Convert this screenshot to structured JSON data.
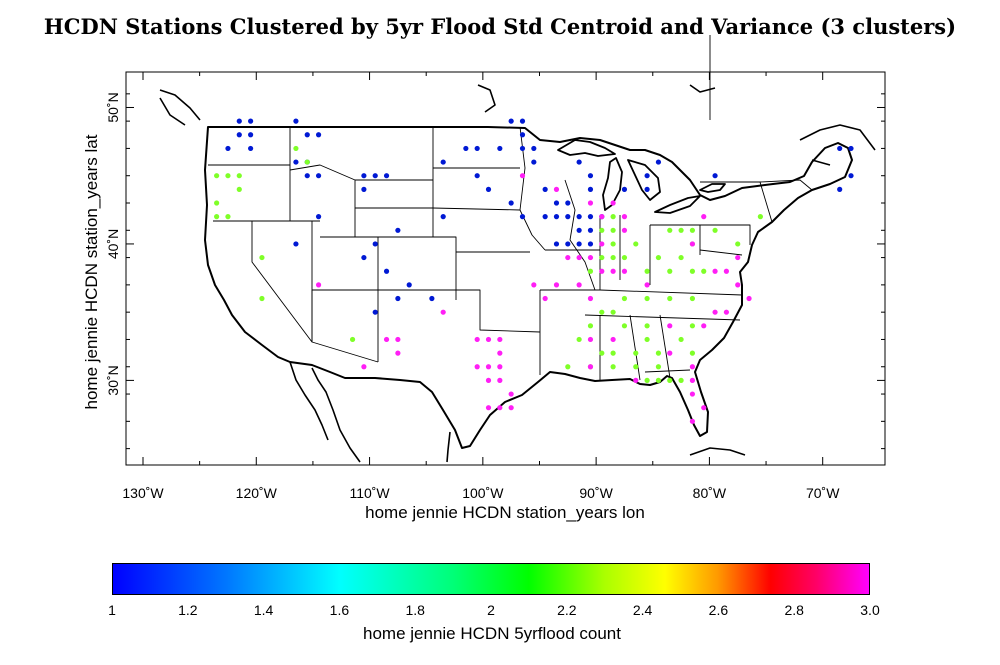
{
  "title": "HCDN Stations Clustered by 5yr Flood Std Centroid and Variance (3 clusters)",
  "x_axis": {
    "label": "home jennie HCDN station_years lon",
    "ticks": [
      {
        "value": -130,
        "label": "130˚W"
      },
      {
        "value": -120,
        "label": "120˚W"
      },
      {
        "value": -110,
        "label": "110˚W"
      },
      {
        "value": -100,
        "label": "100˚W"
      },
      {
        "value": -90,
        "label": "90˚W"
      },
      {
        "value": -80,
        "label": "80˚W"
      },
      {
        "value": -70,
        "label": "70˚W"
      }
    ],
    "range": [
      -131.5,
      -64.5
    ]
  },
  "y_axis": {
    "label": "home jennie HCDN station_years lat",
    "ticks": [
      {
        "value": 30,
        "label": "30˚N"
      },
      {
        "value": 40,
        "label": "40˚N"
      },
      {
        "value": 50,
        "label": "50˚N"
      }
    ],
    "range": [
      23.8,
      52.6
    ]
  },
  "colorbar": {
    "label": "home jennie HCDN 5yrflood count",
    "range": [
      1,
      3
    ],
    "ticks": [
      {
        "value": 1,
        "label": "1"
      },
      {
        "value": 1.2,
        "label": "1.2"
      },
      {
        "value": 1.4,
        "label": "1.4"
      },
      {
        "value": 1.6,
        "label": "1.6"
      },
      {
        "value": 1.8,
        "label": "1.8"
      },
      {
        "value": 2,
        "label": "2"
      },
      {
        "value": 2.2,
        "label": "2.2"
      },
      {
        "value": 2.4,
        "label": "2.4"
      },
      {
        "value": 2.6,
        "label": "2.6"
      },
      {
        "value": 2.8,
        "label": "2.8"
      },
      {
        "value": 3,
        "label": "3.0"
      }
    ]
  },
  "cluster_colors": {
    "1": "#0019d4",
    "2": "#7fff28",
    "3": "#ff1ff5"
  },
  "stations": [
    {
      "lon": -121.5,
      "lat": 49,
      "cluster": 1
    },
    {
      "lon": -120.5,
      "lat": 49,
      "cluster": 1
    },
    {
      "lon": -121.5,
      "lat": 48,
      "cluster": 1
    },
    {
      "lon": -120.5,
      "lat": 48,
      "cluster": 1
    },
    {
      "lon": -122.5,
      "lat": 47,
      "cluster": 1
    },
    {
      "lon": -120.5,
      "lat": 47,
      "cluster": 1
    },
    {
      "lon": -116.5,
      "lat": 49,
      "cluster": 1
    },
    {
      "lon": -115.5,
      "lat": 48,
      "cluster": 1
    },
    {
      "lon": -114.5,
      "lat": 48,
      "cluster": 1
    },
    {
      "lon": -116.5,
      "lat": 46,
      "cluster": 1
    },
    {
      "lon": -115.5,
      "lat": 46,
      "cluster": 1
    },
    {
      "lon": -115.5,
      "lat": 45,
      "cluster": 1
    },
    {
      "lon": -114.5,
      "lat": 45,
      "cluster": 1
    },
    {
      "lon": -114.5,
      "lat": 42,
      "cluster": 1
    },
    {
      "lon": -116.5,
      "lat": 40,
      "cluster": 1
    },
    {
      "lon": -110.5,
      "lat": 45,
      "cluster": 1
    },
    {
      "lon": -109.5,
      "lat": 45,
      "cluster": 1
    },
    {
      "lon": -108.5,
      "lat": 45,
      "cluster": 1
    },
    {
      "lon": -110.5,
      "lat": 44,
      "cluster": 1
    },
    {
      "lon": -107.5,
      "lat": 41,
      "cluster": 1
    },
    {
      "lon": -110.5,
      "lat": 39,
      "cluster": 1
    },
    {
      "lon": -109.5,
      "lat": 40,
      "cluster": 1
    },
    {
      "lon": -108.5,
      "lat": 38,
      "cluster": 1
    },
    {
      "lon": -106.5,
      "lat": 37,
      "cluster": 1
    },
    {
      "lon": -107.5,
      "lat": 36,
      "cluster": 1
    },
    {
      "lon": -104.5,
      "lat": 36,
      "cluster": 1
    },
    {
      "lon": -109.5,
      "lat": 35,
      "cluster": 1
    },
    {
      "lon": -100.5,
      "lat": 47,
      "cluster": 1
    },
    {
      "lon": -101.5,
      "lat": 47,
      "cluster": 1
    },
    {
      "lon": -98.5,
      "lat": 47,
      "cluster": 1
    },
    {
      "lon": -103.5,
      "lat": 46,
      "cluster": 1
    },
    {
      "lon": -100.5,
      "lat": 45,
      "cluster": 1
    },
    {
      "lon": -97.5,
      "lat": 49,
      "cluster": 1
    },
    {
      "lon": -96.5,
      "lat": 49,
      "cluster": 1
    },
    {
      "lon": -96.5,
      "lat": 48,
      "cluster": 1
    },
    {
      "lon": -96.5,
      "lat": 47,
      "cluster": 1
    },
    {
      "lon": -95.5,
      "lat": 47,
      "cluster": 1
    },
    {
      "lon": -95.5,
      "lat": 46,
      "cluster": 1
    },
    {
      "lon": -99.5,
      "lat": 44,
      "cluster": 1
    },
    {
      "lon": -97.5,
      "lat": 43,
      "cluster": 1
    },
    {
      "lon": -96.5,
      "lat": 42,
      "cluster": 1
    },
    {
      "lon": -103.5,
      "lat": 42,
      "cluster": 1
    },
    {
      "lon": -91.5,
      "lat": 46,
      "cluster": 1
    },
    {
      "lon": -90.5,
      "lat": 45,
      "cluster": 1
    },
    {
      "lon": -90.5,
      "lat": 44,
      "cluster": 1
    },
    {
      "lon": -94.5,
      "lat": 44,
      "cluster": 1
    },
    {
      "lon": -93.5,
      "lat": 43,
      "cluster": 1
    },
    {
      "lon": -92.5,
      "lat": 43,
      "cluster": 1
    },
    {
      "lon": -94.5,
      "lat": 42,
      "cluster": 1
    },
    {
      "lon": -93.5,
      "lat": 42,
      "cluster": 1
    },
    {
      "lon": -92.5,
      "lat": 42,
      "cluster": 1
    },
    {
      "lon": -91.5,
      "lat": 42,
      "cluster": 1
    },
    {
      "lon": -90.5,
      "lat": 42,
      "cluster": 1
    },
    {
      "lon": -89.5,
      "lat": 42,
      "cluster": 1
    },
    {
      "lon": -91.5,
      "lat": 41,
      "cluster": 1
    },
    {
      "lon": -90.5,
      "lat": 41,
      "cluster": 1
    },
    {
      "lon": -92.5,
      "lat": 40,
      "cluster": 1
    },
    {
      "lon": -91.5,
      "lat": 40,
      "cluster": 1
    },
    {
      "lon": -90.5,
      "lat": 40,
      "cluster": 1
    },
    {
      "lon": -93.5,
      "lat": 40,
      "cluster": 1
    },
    {
      "lon": -87.5,
      "lat": 44,
      "cluster": 1
    },
    {
      "lon": -85.5,
      "lat": 44,
      "cluster": 1
    },
    {
      "lon": -85.5,
      "lat": 45,
      "cluster": 1
    },
    {
      "lon": -84.5,
      "lat": 46,
      "cluster": 1
    },
    {
      "lon": -68.5,
      "lat": 47,
      "cluster": 1
    },
    {
      "lon": -67.5,
      "lat": 47,
      "cluster": 1
    },
    {
      "lon": -67.5,
      "lat": 45,
      "cluster": 1
    },
    {
      "lon": -68.5,
      "lat": 44,
      "cluster": 1
    },
    {
      "lon": -79.5,
      "lat": 45,
      "cluster": 1
    },
    {
      "lon": -116.5,
      "lat": 47,
      "cluster": 2
    },
    {
      "lon": -115.5,
      "lat": 46,
      "cluster": 2
    },
    {
      "lon": -123.5,
      "lat": 45,
      "cluster": 2
    },
    {
      "lon": -122.5,
      "lat": 45,
      "cluster": 2
    },
    {
      "lon": -121.5,
      "lat": 45,
      "cluster": 2
    },
    {
      "lon": -121.5,
      "lat": 44,
      "cluster": 2
    },
    {
      "lon": -123.5,
      "lat": 43,
      "cluster": 2
    },
    {
      "lon": -123.5,
      "lat": 42,
      "cluster": 2
    },
    {
      "lon": -122.5,
      "lat": 42,
      "cluster": 2
    },
    {
      "lon": -119.5,
      "lat": 39,
      "cluster": 2
    },
    {
      "lon": -119.5,
      "lat": 36,
      "cluster": 2
    },
    {
      "lon": -111.5,
      "lat": 33,
      "cluster": 2
    },
    {
      "lon": -88.5,
      "lat": 42,
      "cluster": 2
    },
    {
      "lon": -89.5,
      "lat": 41,
      "cluster": 2
    },
    {
      "lon": -88.5,
      "lat": 41,
      "cluster": 2
    },
    {
      "lon": -88.5,
      "lat": 40,
      "cluster": 2
    },
    {
      "lon": -89.5,
      "lat": 39,
      "cluster": 2
    },
    {
      "lon": -88.5,
      "lat": 39,
      "cluster": 2
    },
    {
      "lon": -90.5,
      "lat": 38,
      "cluster": 2
    },
    {
      "lon": -87.5,
      "lat": 39,
      "cluster": 2
    },
    {
      "lon": -86.5,
      "lat": 40,
      "cluster": 2
    },
    {
      "lon": -83.5,
      "lat": 41,
      "cluster": 2
    },
    {
      "lon": -82.5,
      "lat": 41,
      "cluster": 2
    },
    {
      "lon": -81.5,
      "lat": 41,
      "cluster": 2
    },
    {
      "lon": -81.5,
      "lat": 40,
      "cluster": 2
    },
    {
      "lon": -82.5,
      "lat": 39,
      "cluster": 2
    },
    {
      "lon": -84.5,
      "lat": 39,
      "cluster": 2
    },
    {
      "lon": -83.5,
      "lat": 38,
      "cluster": 2
    },
    {
      "lon": -85.5,
      "lat": 38,
      "cluster": 2
    },
    {
      "lon": -81.5,
      "lat": 38,
      "cluster": 2
    },
    {
      "lon": -80.5,
      "lat": 38,
      "cluster": 2
    },
    {
      "lon": -77.5,
      "lat": 40,
      "cluster": 2
    },
    {
      "lon": -75.5,
      "lat": 42,
      "cluster": 2
    },
    {
      "lon": -79.5,
      "lat": 41,
      "cluster": 2
    },
    {
      "lon": -87.5,
      "lat": 36,
      "cluster": 2
    },
    {
      "lon": -85.5,
      "lat": 36,
      "cluster": 2
    },
    {
      "lon": -83.5,
      "lat": 36,
      "cluster": 2
    },
    {
      "lon": -81.5,
      "lat": 36,
      "cluster": 2
    },
    {
      "lon": -89.5,
      "lat": 35,
      "cluster": 2
    },
    {
      "lon": -88.5,
      "lat": 35,
      "cluster": 2
    },
    {
      "lon": -90.5,
      "lat": 34,
      "cluster": 2
    },
    {
      "lon": -87.5,
      "lat": 34,
      "cluster": 2
    },
    {
      "lon": -85.5,
      "lat": 34,
      "cluster": 2
    },
    {
      "lon": -81.5,
      "lat": 34,
      "cluster": 2
    },
    {
      "lon": -82.5,
      "lat": 33,
      "cluster": 2
    },
    {
      "lon": -85.5,
      "lat": 33,
      "cluster": 2
    },
    {
      "lon": -91.5,
      "lat": 33,
      "cluster": 2
    },
    {
      "lon": -89.5,
      "lat": 32,
      "cluster": 2
    },
    {
      "lon": -88.5,
      "lat": 32,
      "cluster": 2
    },
    {
      "lon": -86.5,
      "lat": 32,
      "cluster": 2
    },
    {
      "lon": -84.5,
      "lat": 32,
      "cluster": 2
    },
    {
      "lon": -81.5,
      "lat": 32,
      "cluster": 2
    },
    {
      "lon": -90.5,
      "lat": 31,
      "cluster": 2
    },
    {
      "lon": -88.5,
      "lat": 31,
      "cluster": 2
    },
    {
      "lon": -86.5,
      "lat": 31,
      "cluster": 2
    },
    {
      "lon": -84.5,
      "lat": 31,
      "cluster": 2
    },
    {
      "lon": -85.5,
      "lat": 30,
      "cluster": 2
    },
    {
      "lon": -84.5,
      "lat": 30,
      "cluster": 2
    },
    {
      "lon": -83.5,
      "lat": 30,
      "cluster": 2
    },
    {
      "lon": -82.5,
      "lat": 30,
      "cluster": 2
    },
    {
      "lon": -92.5,
      "lat": 31,
      "cluster": 2
    },
    {
      "lon": -93.5,
      "lat": 44,
      "cluster": 3
    },
    {
      "lon": -90.5,
      "lat": 43,
      "cluster": 3
    },
    {
      "lon": -89.5,
      "lat": 42,
      "cluster": 3
    },
    {
      "lon": -88.5,
      "lat": 43,
      "cluster": 3
    },
    {
      "lon": -87.5,
      "lat": 42,
      "cluster": 3
    },
    {
      "lon": -87.5,
      "lat": 41,
      "cluster": 3
    },
    {
      "lon": -89.5,
      "lat": 40,
      "cluster": 3
    },
    {
      "lon": -92.5,
      "lat": 39,
      "cluster": 3
    },
    {
      "lon": -91.5,
      "lat": 39,
      "cluster": 3
    },
    {
      "lon": -90.5,
      "lat": 39,
      "cluster": 3
    },
    {
      "lon": -89.5,
      "lat": 38,
      "cluster": 3
    },
    {
      "lon": -88.5,
      "lat": 38,
      "cluster": 3
    },
    {
      "lon": -87.5,
      "lat": 38,
      "cluster": 3
    },
    {
      "lon": -91.5,
      "lat": 37,
      "cluster": 3
    },
    {
      "lon": -85.5,
      "lat": 37,
      "cluster": 3
    },
    {
      "lon": -81.5,
      "lat": 40,
      "cluster": 3
    },
    {
      "lon": -80.5,
      "lat": 42,
      "cluster": 3
    },
    {
      "lon": -79.5,
      "lat": 38,
      "cluster": 3
    },
    {
      "lon": -78.5,
      "lat": 38,
      "cluster": 3
    },
    {
      "lon": -77.5,
      "lat": 39,
      "cluster": 3
    },
    {
      "lon": -77.5,
      "lat": 37,
      "cluster": 3
    },
    {
      "lon": -76.5,
      "lat": 36,
      "cluster": 3
    },
    {
      "lon": -79.5,
      "lat": 35,
      "cluster": 3
    },
    {
      "lon": -78.5,
      "lat": 35,
      "cluster": 3
    },
    {
      "lon": -80.5,
      "lat": 34,
      "cluster": 3
    },
    {
      "lon": -83.5,
      "lat": 34,
      "cluster": 3
    },
    {
      "lon": -90.5,
      "lat": 33,
      "cluster": 3
    },
    {
      "lon": -90.5,
      "lat": 31,
      "cluster": 3
    },
    {
      "lon": -86.5,
      "lat": 30,
      "cluster": 3
    },
    {
      "lon": -83.5,
      "lat": 32,
      "cluster": 3
    },
    {
      "lon": -81.5,
      "lat": 31,
      "cluster": 3
    },
    {
      "lon": -81.5,
      "lat": 30,
      "cluster": 3
    },
    {
      "lon": -81.5,
      "lat": 29,
      "cluster": 3
    },
    {
      "lon": -80.5,
      "lat": 28,
      "cluster": 3
    },
    {
      "lon": -81.5,
      "lat": 27,
      "cluster": 3
    },
    {
      "lon": -95.5,
      "lat": 37,
      "cluster": 3
    },
    {
      "lon": -114.5,
      "lat": 37,
      "cluster": 3
    },
    {
      "lon": -103.5,
      "lat": 35,
      "cluster": 3
    },
    {
      "lon": -108.5,
      "lat": 33,
      "cluster": 3
    },
    {
      "lon": -107.5,
      "lat": 32,
      "cluster": 3
    },
    {
      "lon": -107.5,
      "lat": 33,
      "cluster": 3
    },
    {
      "lon": -110.5,
      "lat": 31,
      "cluster": 3
    },
    {
      "lon": -100.5,
      "lat": 33,
      "cluster": 3
    },
    {
      "lon": -99.5,
      "lat": 33,
      "cluster": 3
    },
    {
      "lon": -98.5,
      "lat": 33,
      "cluster": 3
    },
    {
      "lon": -98.5,
      "lat": 32,
      "cluster": 3
    },
    {
      "lon": -100.5,
      "lat": 31,
      "cluster": 3
    },
    {
      "lon": -99.5,
      "lat": 31,
      "cluster": 3
    },
    {
      "lon": -98.5,
      "lat": 31,
      "cluster": 3
    },
    {
      "lon": -99.5,
      "lat": 30,
      "cluster": 3
    },
    {
      "lon": -98.5,
      "lat": 30,
      "cluster": 3
    },
    {
      "lon": -97.5,
      "lat": 29,
      "cluster": 3
    },
    {
      "lon": -98.5,
      "lat": 28,
      "cluster": 3
    },
    {
      "lon": -97.5,
      "lat": 28,
      "cluster": 3
    },
    {
      "lon": -99.5,
      "lat": 28,
      "cluster": 3
    },
    {
      "lon": -94.5,
      "lat": 36,
      "cluster": 3
    },
    {
      "lon": -93.5,
      "lat": 37,
      "cluster": 3
    },
    {
      "lon": -90.5,
      "lat": 36,
      "cluster": 3
    },
    {
      "lon": -88.5,
      "lat": 33,
      "cluster": 3
    },
    {
      "lon": -96.5,
      "lat": 45,
      "cluster": 3
    }
  ]
}
